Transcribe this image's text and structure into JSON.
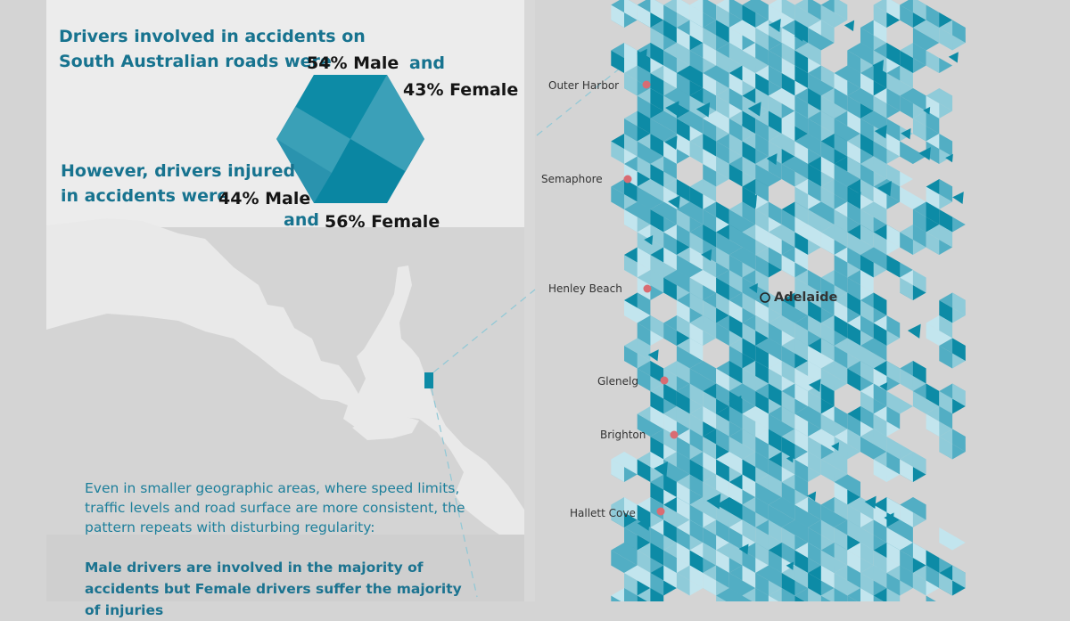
{
  "headline": {
    "line1": "Drivers involved in accidents on",
    "line2": "South Australian roads were",
    "male_involved": "54% Male",
    "and_1": "and",
    "female_involved": "43% Female",
    "line3": "However, drivers injured",
    "line4": "in accidents were",
    "male_injured": "44% Male",
    "and_2": "and",
    "female_injured": "56% Female"
  },
  "body": {
    "paragraph": "Even in smaller geographic areas, where speed limits, traffic levels and road surface are more consistent, the pattern repeats with disturbing regularity:",
    "conclusion": "Male drivers are involved in the majority of accidents but Female drivers suffer the majority of injuries"
  },
  "map": {
    "city": "Adelaide",
    "places": [
      "Outer Harbor",
      "Semaphore",
      "Henley Beach",
      "Glenelg",
      "Brighton",
      "Hallett Cove"
    ],
    "colors": {
      "dark_teal": "#0d8ba6",
      "mid_teal": "#52aec4",
      "light_teal": "#8fcbd9",
      "pale_teal": "#c2e5ee",
      "land": "#e9e9e9",
      "sea": "#d4d4d4",
      "marker": "#d96c73"
    }
  }
}
